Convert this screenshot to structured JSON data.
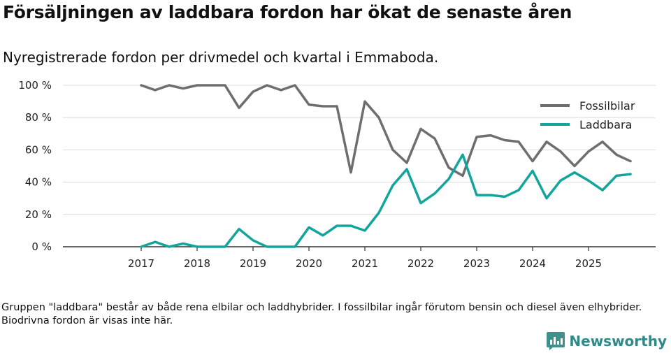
{
  "title": "Försäljningen av laddbara fordon har ökat de senaste åren",
  "subtitle": "Nyregistrerade fordon per drivmedel och kvartal i Emmaboda.",
  "footnote": "Gruppen \"laddbara\" består av både rena elbilar och laddhybrider. I fossilbilar ingår förutom bensin och diesel även elhybrider. Biodrivna fordon är visas inte här.",
  "brand": {
    "name": "Newsworthy",
    "icon": "newsworthy-logo-icon",
    "color": "#2e8a89"
  },
  "chart_data": {
    "type": "line",
    "title": "Försäljningen av laddbara fordon har ökat de senaste åren",
    "xlabel": "",
    "ylabel": "",
    "x_start": 2017.0,
    "x_step": 0.25,
    "xlim": [
      2015.6,
      2026.2
    ],
    "ylim": [
      0,
      100
    ],
    "y_ticks": [
      0,
      20,
      40,
      60,
      80,
      100
    ],
    "y_tick_labels": [
      "0 %",
      "20 %",
      "40 %",
      "60 %",
      "80 %",
      "100 %"
    ],
    "x_ticks": [
      2017,
      2018,
      2019,
      2020,
      2021,
      2022,
      2023,
      2024,
      2025
    ],
    "x_tick_labels": [
      "2017",
      "2018",
      "2019",
      "2020",
      "2021",
      "2022",
      "2023",
      "2024",
      "2025"
    ],
    "grid": true,
    "legend_position": "top-right",
    "series": [
      {
        "name": "Fossilbilar",
        "color": "#6e6e6e",
        "values": [
          100,
          97,
          100,
          98,
          100,
          100,
          100,
          86,
          96,
          100,
          97,
          100,
          88,
          87,
          87,
          46,
          90,
          80,
          60,
          52,
          73,
          67,
          49,
          44,
          68,
          69,
          66,
          65,
          53,
          65,
          59,
          50,
          59,
          65,
          57,
          53
        ]
      },
      {
        "name": "Laddbara",
        "color": "#12a59b",
        "values": [
          0,
          3,
          0,
          2,
          0,
          0,
          0,
          11,
          4,
          0,
          0,
          0,
          12,
          7,
          13,
          13,
          10,
          21,
          38,
          48,
          27,
          33,
          42,
          57,
          32,
          32,
          31,
          35,
          47,
          30,
          41,
          46,
          41,
          35,
          44,
          45
        ]
      }
    ]
  }
}
